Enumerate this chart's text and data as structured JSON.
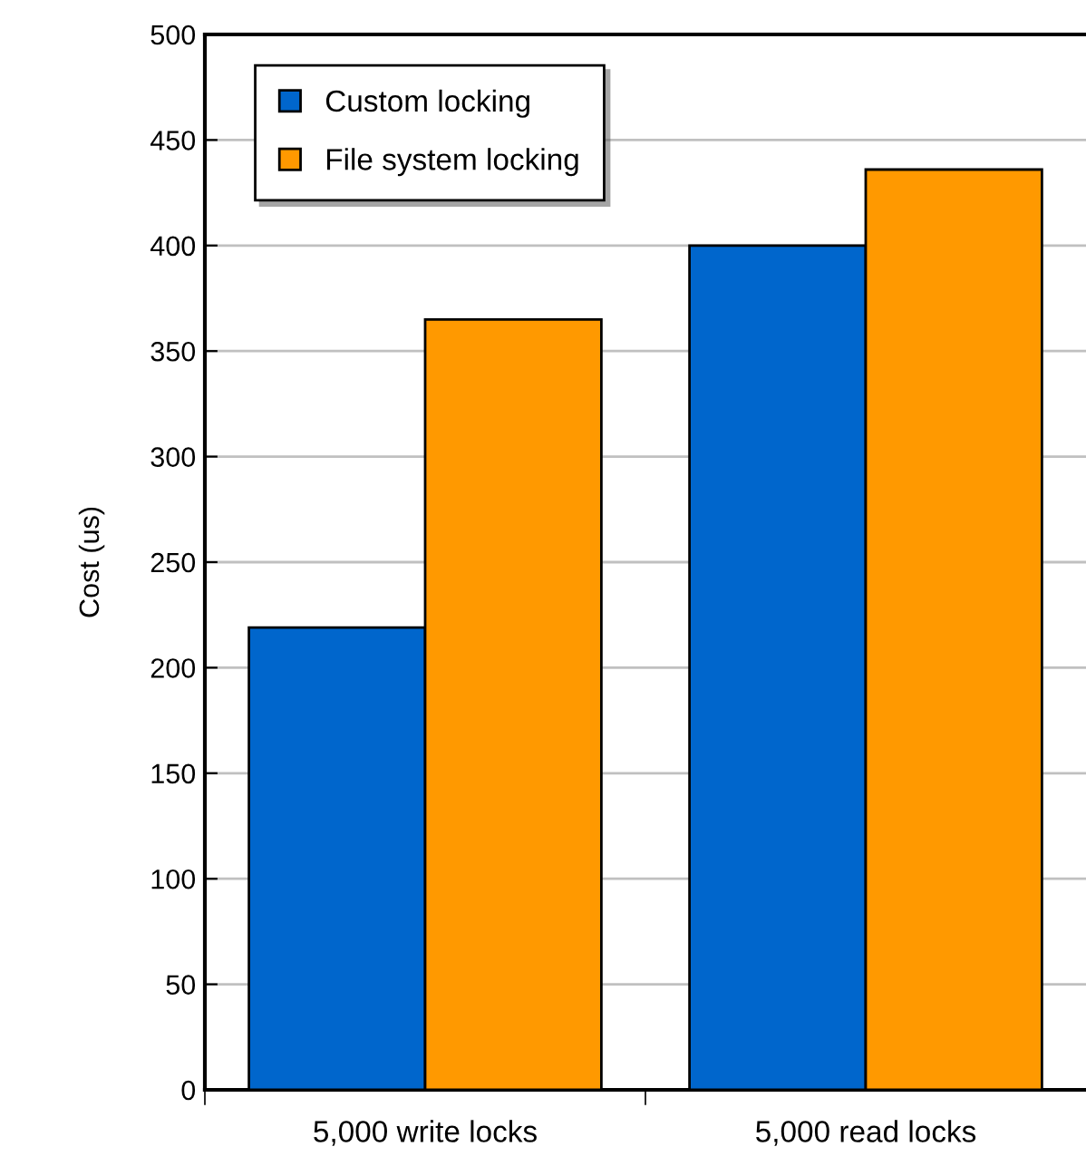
{
  "chart_data": {
    "type": "bar",
    "ylabel": "Cost (us)",
    "categories": [
      "5,000 write locks",
      "5,000 read locks"
    ],
    "series": [
      {
        "name": "Custom locking",
        "color": "#0066cc",
        "values": [
          219,
          400
        ]
      },
      {
        "name": "File system locking",
        "color": "#ff9900",
        "values": [
          365,
          436
        ]
      }
    ],
    "ylim": [
      0,
      500
    ],
    "yticks": [
      0,
      50,
      100,
      150,
      200,
      250,
      300,
      350,
      400,
      450,
      500
    ],
    "grid": "y",
    "legend": "top left"
  }
}
